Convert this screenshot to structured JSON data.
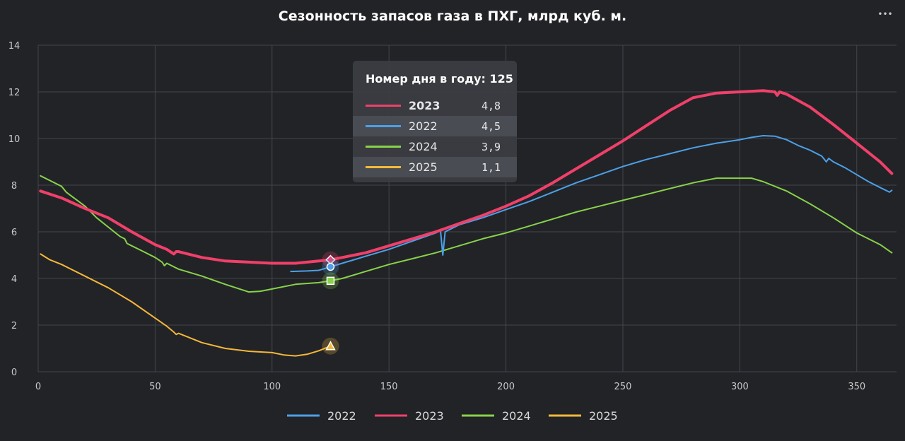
{
  "menu": {
    "icon": "more-horizontal-icon",
    "label": "•••"
  },
  "chart_data": {
    "type": "line",
    "title": "Сезонность запасов газа в ПХГ, млрд куб. м.",
    "xlabel": "",
    "ylabel": "",
    "xlim": [
      0,
      367
    ],
    "ylim": [
      0,
      14
    ],
    "x_ticks": [
      0,
      50,
      100,
      150,
      200,
      250,
      300,
      350
    ],
    "y_ticks": [
      0,
      2,
      4,
      6,
      8,
      10,
      12,
      14
    ],
    "grid": true,
    "legend_position": "bottom",
    "series": [
      {
        "name": "2022",
        "color": "#4ca0e8",
        "x": [
          108,
          115,
          120,
          125,
          130,
          140,
          150,
          160,
          170,
          172,
          173,
          174,
          180,
          190,
          200,
          210,
          220,
          230,
          240,
          250,
          260,
          270,
          280,
          290,
          300,
          305,
          310,
          315,
          320,
          325,
          330,
          335,
          337,
          338,
          340,
          345,
          350,
          355,
          360,
          364,
          365
        ],
        "y": [
          4.3,
          4.32,
          4.35,
          4.5,
          4.65,
          4.95,
          5.25,
          5.6,
          5.95,
          6.05,
          5.0,
          6.0,
          6.3,
          6.6,
          6.95,
          7.3,
          7.7,
          8.1,
          8.45,
          8.8,
          9.1,
          9.35,
          9.6,
          9.8,
          9.95,
          10.05,
          10.12,
          10.1,
          9.95,
          9.7,
          9.5,
          9.25,
          9.0,
          9.15,
          9.0,
          8.75,
          8.45,
          8.15,
          7.9,
          7.7,
          7.78
        ]
      },
      {
        "name": "2023",
        "color": "#f0406a",
        "x": [
          1,
          10,
          20,
          30,
          40,
          50,
          55,
          58,
          59,
          60,
          70,
          80,
          90,
          100,
          110,
          120,
          125,
          130,
          140,
          150,
          160,
          170,
          180,
          190,
          200,
          210,
          220,
          230,
          240,
          250,
          260,
          270,
          280,
          290,
          300,
          310,
          315,
          316,
          317,
          320,
          330,
          340,
          350,
          360,
          365
        ],
        "y": [
          7.75,
          7.45,
          7.0,
          6.6,
          6.0,
          5.45,
          5.25,
          5.05,
          5.15,
          5.15,
          4.9,
          4.75,
          4.7,
          4.65,
          4.65,
          4.75,
          4.8,
          4.9,
          5.1,
          5.4,
          5.7,
          6.0,
          6.35,
          6.7,
          7.1,
          7.55,
          8.1,
          8.7,
          9.3,
          9.9,
          10.55,
          11.2,
          11.75,
          11.95,
          12.0,
          12.05,
          12.0,
          11.85,
          12.0,
          11.9,
          11.35,
          10.6,
          9.8,
          9.0,
          8.5
        ]
      },
      {
        "name": "2024",
        "color": "#88d24a",
        "x": [
          1,
          5,
          10,
          12,
          20,
          25,
          30,
          35,
          37,
          38,
          40,
          45,
          50,
          53,
          54,
          55,
          60,
          70,
          80,
          90,
          95,
          100,
          110,
          120,
          125,
          130,
          140,
          150,
          160,
          170,
          180,
          190,
          200,
          210,
          220,
          230,
          240,
          250,
          260,
          270,
          280,
          290,
          300,
          305,
          310,
          320,
          330,
          340,
          350,
          360,
          365
        ],
        "y": [
          8.4,
          8.2,
          7.95,
          7.7,
          7.1,
          6.6,
          6.2,
          5.8,
          5.7,
          5.5,
          5.4,
          5.15,
          4.9,
          4.7,
          4.55,
          4.65,
          4.4,
          4.1,
          3.75,
          3.42,
          3.45,
          3.55,
          3.75,
          3.82,
          3.9,
          4.0,
          4.3,
          4.6,
          4.85,
          5.1,
          5.4,
          5.7,
          5.95,
          6.25,
          6.55,
          6.85,
          7.1,
          7.35,
          7.6,
          7.85,
          8.1,
          8.3,
          8.3,
          8.3,
          8.15,
          7.75,
          7.2,
          6.6,
          5.95,
          5.45,
          5.1
        ]
      },
      {
        "name": "2025",
        "color": "#f4b83a",
        "x": [
          1,
          5,
          10,
          20,
          30,
          40,
          50,
          55,
          58,
          59,
          60,
          70,
          80,
          90,
          100,
          105,
          110,
          115,
          120,
          125
        ],
        "y": [
          5.05,
          4.8,
          4.6,
          4.1,
          3.6,
          3.0,
          2.3,
          1.95,
          1.7,
          1.6,
          1.65,
          1.25,
          1.0,
          0.88,
          0.82,
          0.72,
          0.68,
          0.75,
          0.9,
          1.1
        ]
      }
    ],
    "tooltip": {
      "title": "Номер дня в году: 125",
      "rows": [
        {
          "name": "2023",
          "value": "4,8",
          "color": "#f0406a"
        },
        {
          "name": "2022",
          "value": "4,5",
          "color": "#4ca0e8"
        },
        {
          "name": "2024",
          "value": "3,9",
          "color": "#88d24a"
        },
        {
          "name": "2025",
          "value": "1,1",
          "color": "#f4b83a"
        }
      ]
    },
    "hover_x": 125,
    "hover_points": [
      {
        "series": "2023",
        "y": 4.8,
        "marker": "diamond"
      },
      {
        "series": "2022",
        "y": 4.5,
        "marker": "circle"
      },
      {
        "series": "2024",
        "y": 3.9,
        "marker": "square"
      },
      {
        "series": "2025",
        "y": 1.1,
        "marker": "triangle"
      }
    ],
    "legend": [
      "2022",
      "2023",
      "2024",
      "2025"
    ]
  }
}
